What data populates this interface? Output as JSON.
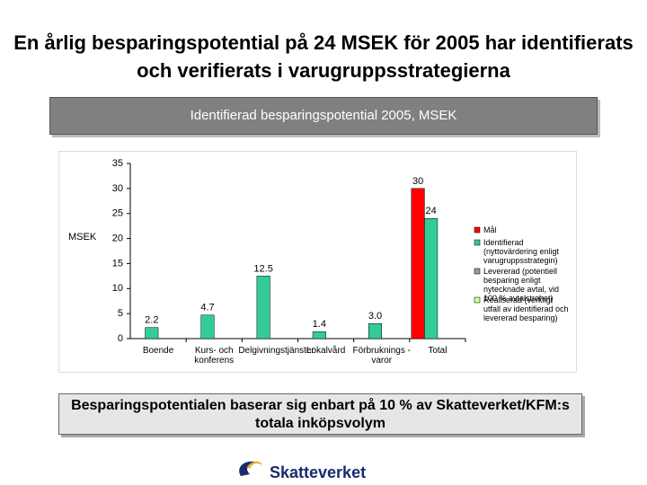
{
  "title": "En årlig besparingspotential på 24 MSEK för 2005 har identifierats och verifierats i varugruppsstrategierna",
  "chart_data": {
    "type": "bar",
    "title": "Identifierad besparingspotential 2005, MSEK",
    "ylabel": "MSEK",
    "categories": [
      "Boende",
      "Kurs- och konferens",
      "Delgivningstjänster",
      "Lokalvård",
      "Förbruknings -varor",
      "Total"
    ],
    "series": [
      {
        "name": "Mål",
        "color": "#ff0000",
        "values": [
          null,
          null,
          null,
          null,
          null,
          30
        ]
      },
      {
        "name": "Identifierad (nyttovärdering enligt varugruppsstrategin)",
        "color": "#33cc99",
        "values": [
          2.2,
          4.7,
          12.5,
          1.4,
          3,
          24
        ],
        "value_labels": [
          "2.2",
          "4.7",
          "12.5",
          "1.4",
          "3.0",
          "24"
        ]
      },
      {
        "name": "Levererad (potentiell besparing enligt nytecknade avtal, vid 100 % avtalstrohet)",
        "color": "#999999",
        "values": [
          null,
          null,
          null,
          null,
          null,
          null
        ]
      },
      {
        "name": "Realiserad (verkligt utfall av identifierad och levererad besparing)",
        "color": "#ccff99",
        "values": [
          null,
          null,
          null,
          null,
          null,
          null
        ]
      }
    ],
    "ylim": [
      0,
      35
    ],
    "yticks": [
      0,
      5,
      10,
      15,
      20,
      25,
      30,
      35
    ]
  },
  "footnote": "Besparingspotentialen baserar sig enbart på 10 % av Skatteverket/KFM:s totala inköpsvolym",
  "logo": "Skatteverket"
}
